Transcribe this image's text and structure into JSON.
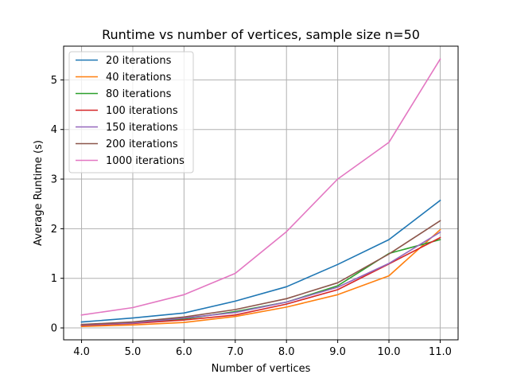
{
  "chart_data": {
    "type": "line",
    "title": "Runtime vs number of vertices, sample size n=50",
    "xlabel": "Number of vertices",
    "ylabel": "Average Runtime (s)",
    "x": [
      4.0,
      5.0,
      6.0,
      7.0,
      8.0,
      9.0,
      10.0,
      11.0
    ],
    "x_tick_labels": [
      "4.0",
      "5.0",
      "6.0",
      "7.0",
      "8.0",
      "9.0",
      "10.0",
      "11.0"
    ],
    "y_ticks": [
      0,
      1,
      2,
      3,
      4,
      5
    ],
    "y_tick_labels": [
      "0",
      "1",
      "2",
      "3",
      "4",
      "5"
    ],
    "xlim": [
      3.65,
      11.35
    ],
    "ylim": [
      -0.24,
      5.68
    ],
    "grid": true,
    "legend_position": "top-left",
    "series": [
      {
        "name": "20 iterations",
        "color": "#1f77b4",
        "values": [
          0.12,
          0.2,
          0.3,
          0.54,
          0.83,
          1.28,
          1.78,
          2.57
        ]
      },
      {
        "name": "40 iterations",
        "color": "#ff7f0e",
        "values": [
          0.03,
          0.06,
          0.11,
          0.23,
          0.42,
          0.67,
          1.05,
          1.98
        ]
      },
      {
        "name": "80 iterations",
        "color": "#2ca02c",
        "values": [
          0.05,
          0.1,
          0.18,
          0.33,
          0.52,
          0.85,
          1.5,
          1.78
        ]
      },
      {
        "name": "100 iterations",
        "color": "#d62728",
        "values": [
          0.05,
          0.09,
          0.16,
          0.26,
          0.48,
          0.77,
          1.29,
          1.82
        ]
      },
      {
        "name": "150 iterations",
        "color": "#9467bd",
        "values": [
          0.06,
          0.1,
          0.2,
          0.31,
          0.52,
          0.82,
          1.3,
          1.93
        ]
      },
      {
        "name": "200 iterations",
        "color": "#8c564b",
        "values": [
          0.07,
          0.12,
          0.22,
          0.37,
          0.59,
          0.91,
          1.49,
          2.16
        ]
      },
      {
        "name": "1000 iterations",
        "color": "#e377c2",
        "values": [
          0.26,
          0.41,
          0.67,
          1.1,
          1.94,
          3.0,
          3.74,
          5.42
        ]
      }
    ]
  }
}
